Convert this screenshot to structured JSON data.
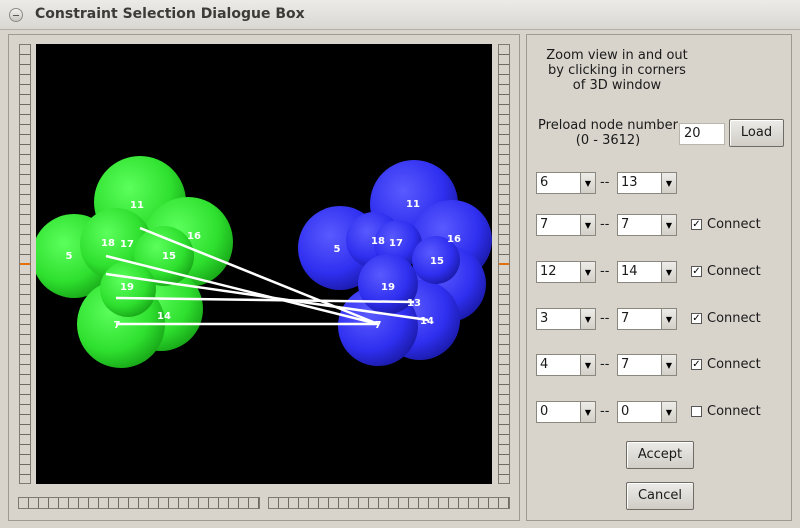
{
  "window": {
    "title": "Constraint Selection Dialogue Box"
  },
  "instructions": [
    "Zoom view in and out",
    "by clicking in corners",
    "of 3D window"
  ],
  "preload": {
    "label_line1": "Preload node number",
    "label_line2": "(0 - 3612)",
    "value": "20",
    "load_label": "Load"
  },
  "scene": {
    "green_color": "#2fe02f",
    "blue_color": "#2f2ff0",
    "green_labels": [
      "11",
      "16",
      "5",
      "18",
      "17",
      "15",
      "19",
      "14",
      "7"
    ],
    "blue_labels": [
      "11",
      "16",
      "5",
      "18",
      "17",
      "15",
      "19",
      "13",
      "14",
      "7"
    ]
  },
  "constraints": [
    {
      "left": "6",
      "sep": "--",
      "right": "13",
      "has_connect": false,
      "connect": false,
      "connect_label": ""
    },
    {
      "left": "7",
      "sep": "--",
      "right": "7",
      "has_connect": true,
      "connect": true,
      "connect_label": "Connect"
    },
    {
      "left": "12",
      "sep": "--",
      "right": "14",
      "has_connect": true,
      "connect": true,
      "connect_label": "Connect"
    },
    {
      "left": "3",
      "sep": "--",
      "right": "7",
      "has_connect": true,
      "connect": true,
      "connect_label": "Connect"
    },
    {
      "left": "4",
      "sep": "--",
      "right": "7",
      "has_connect": true,
      "connect": true,
      "connect_label": "Connect"
    },
    {
      "left": "0",
      "sep": "--",
      "right": "0",
      "has_connect": true,
      "connect": false,
      "connect_label": "Connect"
    }
  ],
  "buttons": {
    "accept_label": "Accept",
    "cancel_label": "Cancel"
  },
  "check_glyph": "✓",
  "icons": {
    "dropdown": "down-triangle-icon",
    "window_menu": "window-menu-icon"
  }
}
